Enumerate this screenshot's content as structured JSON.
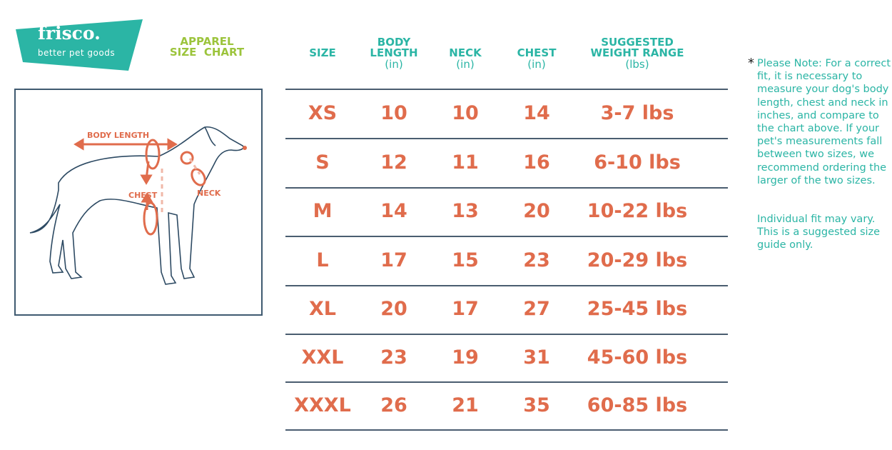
{
  "brand": {
    "name": "frisco.",
    "tagline": "better pet goods",
    "color": "#2bb5a5"
  },
  "title": {
    "line1": "APPAREL",
    "line2": "SIZE  CHART",
    "color": "#9cc43c"
  },
  "diagram": {
    "labels": {
      "body_length": "BODY LENGTH",
      "chest": "CHEST",
      "neck": "NECK"
    },
    "accent": "#e06c4c"
  },
  "table": {
    "headers": [
      {
        "title": "SIZE",
        "unit": ""
      },
      {
        "title": "BODY LENGTH",
        "unit": "(in)"
      },
      {
        "title": "NECK",
        "unit": "(in)"
      },
      {
        "title": "CHEST",
        "unit": "(in)"
      },
      {
        "title": "SUGGESTED WEIGHT RANGE",
        "unit": "(lbs)"
      }
    ],
    "header_lines": [
      [
        "SIZE"
      ],
      [
        "BODY",
        "LENGTH"
      ],
      [
        "NECK"
      ],
      [
        "CHEST"
      ],
      [
        "SUGGESTED",
        "WEIGHT RANGE"
      ]
    ],
    "rows": [
      [
        "XS",
        "10",
        "10",
        "14",
        "3-7 lbs"
      ],
      [
        "S",
        "12",
        "11",
        "16",
        "6-10 lbs"
      ],
      [
        "M",
        "14",
        "13",
        "20",
        "10-22 lbs"
      ],
      [
        "L",
        "17",
        "15",
        "23",
        "20-29 lbs"
      ],
      [
        "XL",
        "20",
        "17",
        "27",
        "25-45 lbs"
      ],
      [
        "XXL",
        "23",
        "19",
        "31",
        "45-60 lbs"
      ],
      [
        "XXXL",
        "26",
        "21",
        "35",
        "60-85 lbs"
      ]
    ]
  },
  "note": {
    "asterisk": "*",
    "paragraph1": "Please Note: For a correct fit, it is necessary to measure your dog's body length, chest and neck in inches, and compare to the chart above. If your pet's measurements fall between two sizes, we recommend ordering the larger of the two sizes.",
    "paragraph2": "Individual fit may vary. This is a suggested size guide only."
  }
}
